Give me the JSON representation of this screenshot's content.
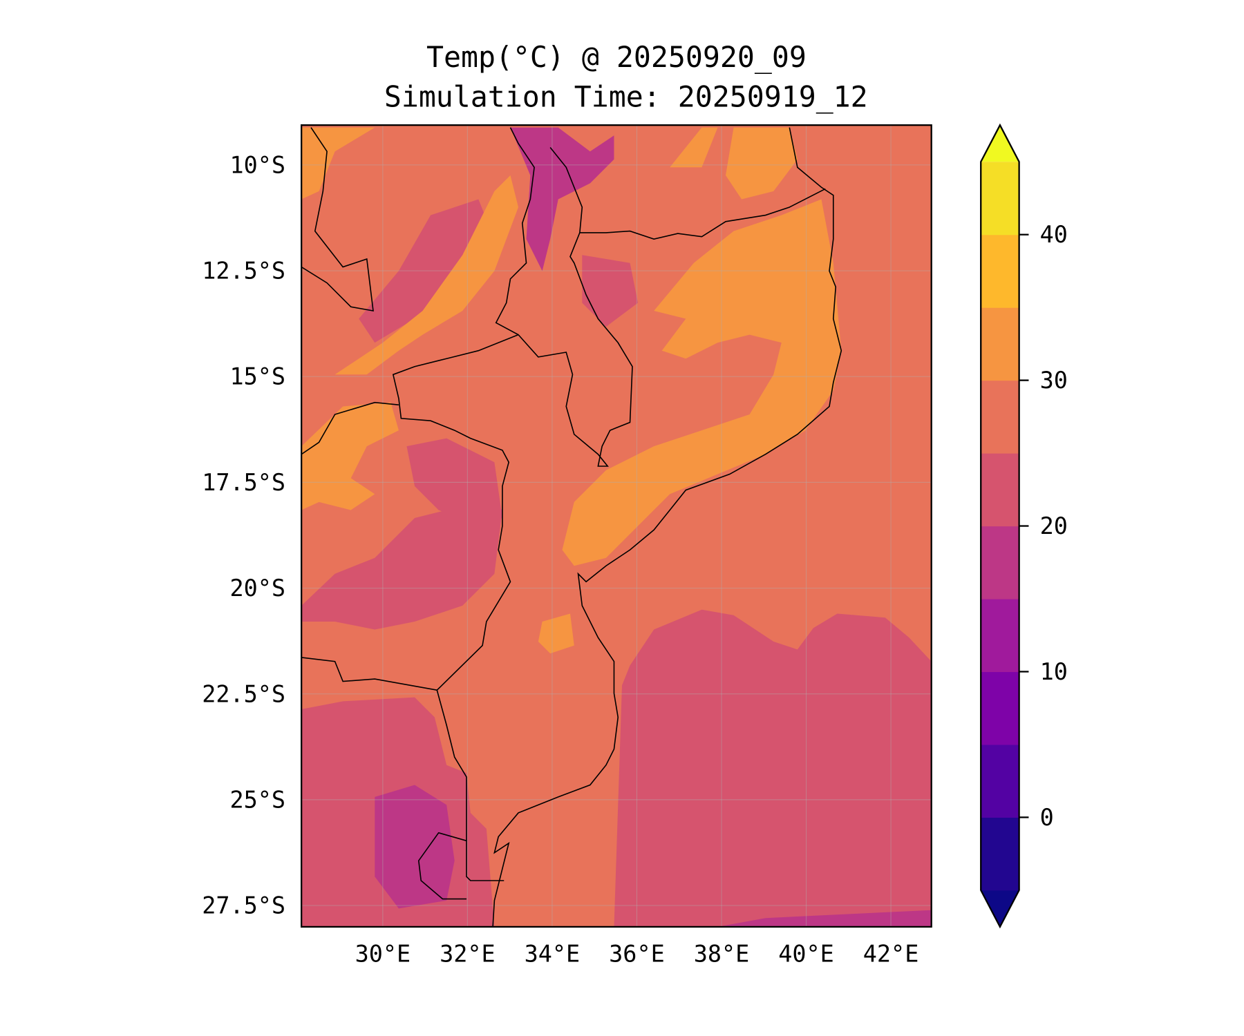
{
  "chart_data": {
    "type": "heatmap",
    "title": "Temp(°C) @ 20250920_09",
    "subtitle": "Simulation Time: 20250919_12",
    "variable": "Temperature (°C)",
    "valid_time": "20250920_09",
    "simulation_time": "20250919_12",
    "map_extent": {
      "lon": [
        28.1,
        43.0
      ],
      "lat": [
        -28.0,
        -9.05
      ]
    },
    "lat_ticks": [
      {
        "value": -10,
        "label": "10°S"
      },
      {
        "value": -12.5,
        "label": "12.5°S"
      },
      {
        "value": -15,
        "label": "15°S"
      },
      {
        "value": -17.5,
        "label": "17.5°S"
      },
      {
        "value": -20,
        "label": "20°S"
      },
      {
        "value": -22.5,
        "label": "22.5°S"
      },
      {
        "value": -25,
        "label": "25°S"
      },
      {
        "value": -27.5,
        "label": "27.5°S"
      }
    ],
    "lon_ticks": [
      {
        "value": 30,
        "label": "30°E"
      },
      {
        "value": 32,
        "label": "32°E"
      },
      {
        "value": 34,
        "label": "34°E"
      },
      {
        "value": 36,
        "label": "36°E"
      },
      {
        "value": 38,
        "label": "38°E"
      },
      {
        "value": 40,
        "label": "40°E"
      },
      {
        "value": 42,
        "label": "42°E"
      }
    ],
    "grid": true,
    "colorbar": {
      "placement": "right",
      "extend": "both",
      "range": [
        -5,
        45
      ],
      "levels": [
        -5,
        0,
        5,
        10,
        15,
        20,
        25,
        30,
        35,
        40,
        45
      ],
      "colors": [
        "#220690",
        "#5302a3",
        "#7e03a8",
        "#a01a9c",
        "#bd3786",
        "#d6546e",
        "#e8735a",
        "#f69541",
        "#feb82c",
        "#f5de26"
      ],
      "under_color": "#0d0887",
      "over_color": "#f0f921",
      "ticks": [
        {
          "value": 0,
          "label": "0"
        },
        {
          "value": 10,
          "label": "10"
        },
        {
          "value": 20,
          "label": "20"
        },
        {
          "value": 30,
          "label": "30"
        },
        {
          "value": 40,
          "label": "40"
        }
      ]
    },
    "summary": {
      "dominant_land_range": [
        25,
        35
      ],
      "southern_ocean_range": [
        20,
        25
      ],
      "coolest_highlands_range": [
        15,
        20
      ]
    }
  }
}
